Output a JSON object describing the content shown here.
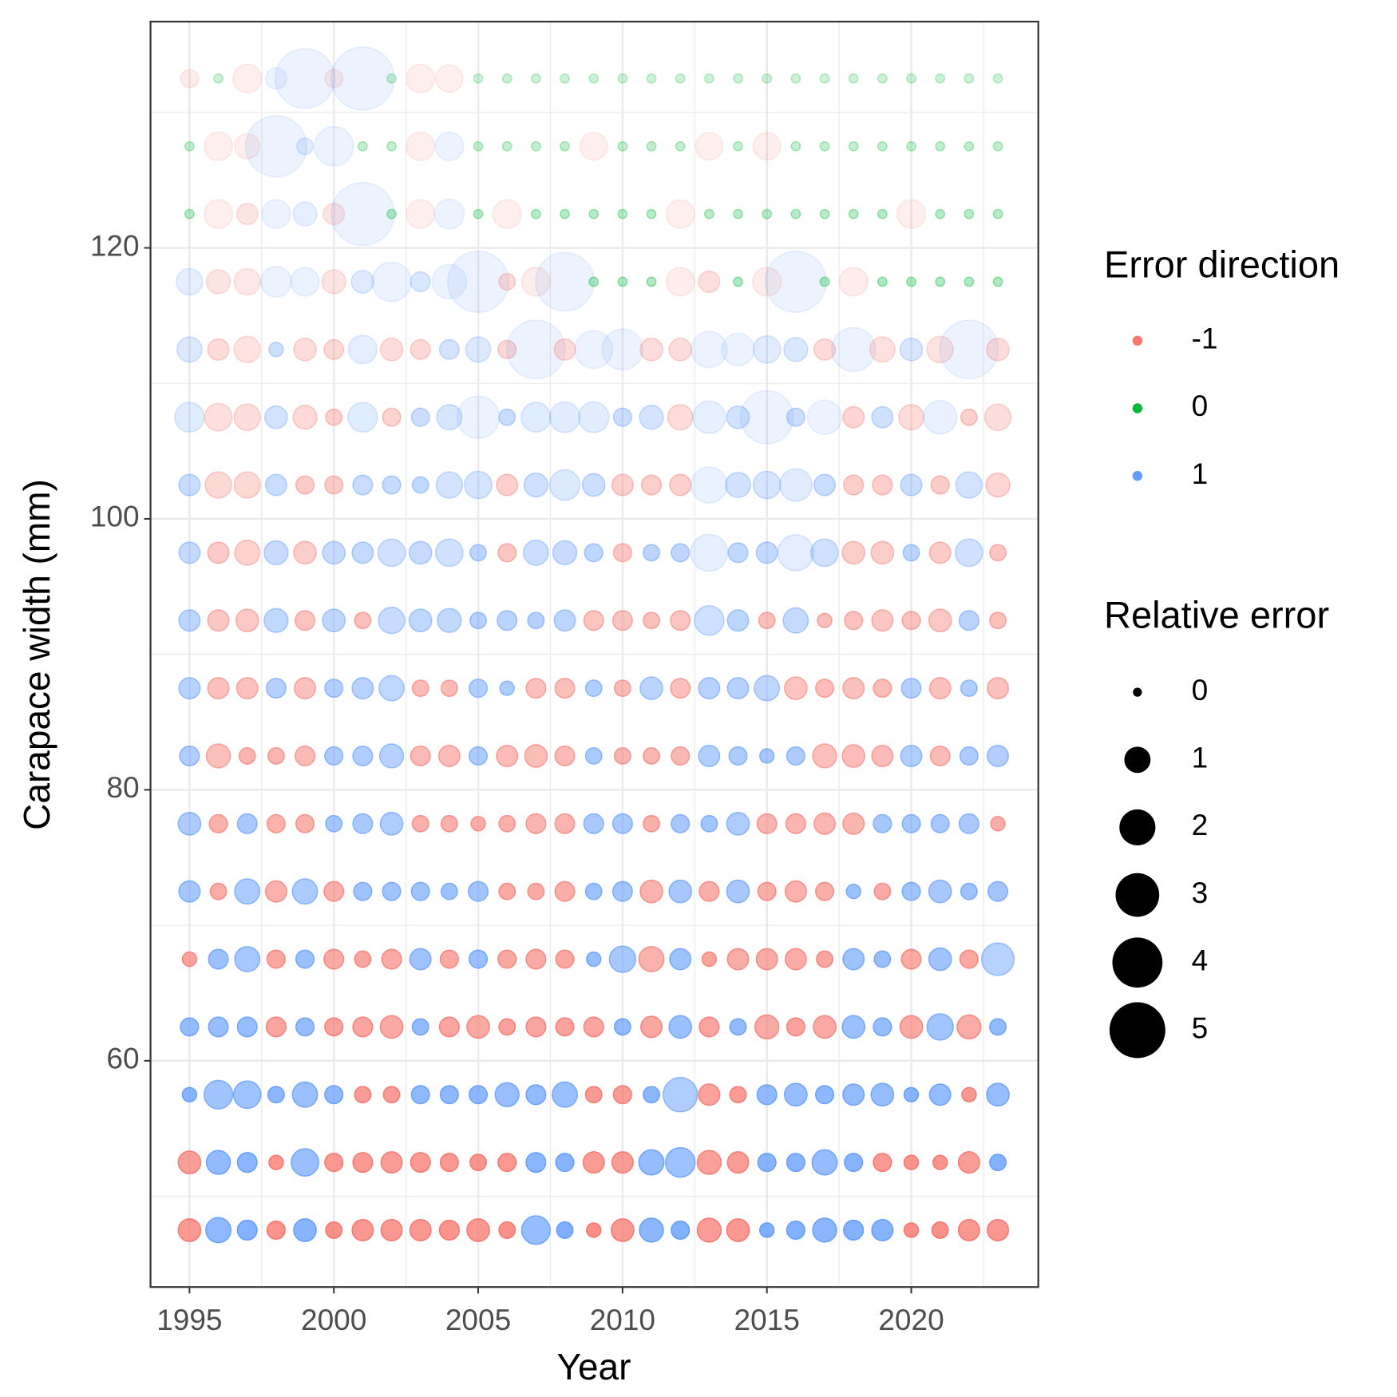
{
  "chart_data": {
    "type": "bubble",
    "x_label": "Year",
    "y_label": "Carapace width (mm)",
    "xlim": [
      1993.65,
      2024.4
    ],
    "ylim": [
      43.3,
      136.7
    ],
    "xticks": [
      1995,
      2000,
      2005,
      2010,
      2015,
      2020
    ],
    "yticks": [
      60,
      80,
      100,
      120
    ],
    "grid": true,
    "x": [
      1995,
      1996,
      1997,
      1998,
      1999,
      2000,
      2001,
      2002,
      2003,
      2004,
      2005,
      2006,
      2007,
      2008,
      2009,
      2010,
      2011,
      2012,
      2013,
      2014,
      2015,
      2016,
      2017,
      2018,
      2019,
      2020,
      2021,
      2022,
      2023
    ],
    "rows": [
      {
        "y": 132.5,
        "direction": [
          -1,
          0,
          -1,
          1,
          1,
          -1,
          1,
          0,
          -1,
          -1,
          0,
          0,
          0,
          0,
          0,
          0,
          0,
          0,
          0,
          0,
          0,
          0,
          0,
          0,
          0,
          0,
          0,
          0,
          0
        ],
        "size": [
          0.4,
          0,
          1.2,
          0.6,
          5.7,
          0.4,
          6.4,
          0,
          1.2,
          1.1,
          0,
          0,
          0,
          0,
          0,
          0,
          0,
          0,
          0,
          0,
          0,
          0,
          0,
          0,
          0,
          0,
          0,
          0,
          0
        ]
      },
      {
        "y": 127.5,
        "direction": [
          0,
          -1,
          -1,
          1,
          1,
          1,
          0,
          0,
          -1,
          1,
          0,
          0,
          0,
          0,
          -1,
          0,
          0,
          0,
          -1,
          0,
          -1,
          0,
          0,
          0,
          0,
          0,
          0,
          0,
          0
        ],
        "size": [
          0,
          1.2,
          0.9,
          6.0,
          0.3,
          2.4,
          0,
          0,
          1.2,
          1.2,
          0,
          0,
          0,
          0,
          1.1,
          0,
          0,
          0,
          1.1,
          0,
          1.1,
          0,
          0,
          0,
          0,
          0,
          0,
          0,
          0
        ]
      },
      {
        "y": 122.5,
        "direction": [
          0,
          -1,
          -1,
          1,
          1,
          -1,
          1,
          0,
          -1,
          1,
          0,
          -1,
          0,
          0,
          0,
          0,
          0,
          -1,
          0,
          0,
          0,
          0,
          0,
          0,
          0,
          -1,
          0,
          0,
          0
        ],
        "size": [
          0,
          1.2,
          0.6,
          1.2,
          0.8,
          0.6,
          6.4,
          0,
          1.2,
          1.3,
          0,
          1.2,
          0,
          0,
          0,
          0,
          0,
          1.2,
          0,
          0,
          0,
          0,
          0,
          0,
          0,
          1.2,
          0,
          0,
          0
        ]
      },
      {
        "y": 117.5,
        "direction": [
          1,
          -1,
          -1,
          1,
          1,
          -1,
          1,
          1,
          1,
          1,
          1,
          -1,
          -1,
          1,
          0,
          0,
          0,
          -1,
          -1,
          0,
          -1,
          1,
          0,
          -1,
          0,
          0,
          0,
          0,
          0
        ],
        "size": [
          1.0,
          0.8,
          1.0,
          1.4,
          1.2,
          0.8,
          0.7,
          2.4,
          0.5,
          1.8,
          6.0,
          0.3,
          1.2,
          5.5,
          0,
          0,
          0,
          1.2,
          0.6,
          0,
          1.2,
          6.0,
          0,
          1.2,
          0,
          0,
          0,
          0,
          0
        ]
      },
      {
        "y": 112.5,
        "direction": [
          1,
          -1,
          -1,
          1,
          -1,
          -1,
          1,
          -1,
          -1,
          1,
          1,
          -1,
          1,
          -1,
          1,
          1,
          -1,
          -1,
          1,
          1,
          1,
          1,
          -1,
          1,
          -1,
          1,
          -1,
          1,
          -1
        ],
        "size": [
          0.9,
          0.6,
          1.0,
          0.2,
          0.7,
          0.5,
          1.2,
          0.7,
          0.5,
          0.5,
          0.9,
          0.4,
          5.5,
          0.6,
          2.2,
          2.6,
          0.7,
          0.7,
          2.0,
          1.6,
          1.1,
          0.8,
          0.6,
          3.0,
          0.9,
          0.7,
          1.0,
          5.5,
          0.7
        ]
      },
      {
        "y": 107.5,
        "direction": [
          1,
          -1,
          -1,
          1,
          -1,
          -1,
          1,
          -1,
          1,
          1,
          1,
          1,
          1,
          1,
          1,
          1,
          1,
          -1,
          1,
          1,
          1,
          1,
          1,
          -1,
          1,
          -1,
          1,
          -1,
          -1
        ],
        "size": [
          1.3,
          1.1,
          1.0,
          0.7,
          0.8,
          0.3,
          1.3,
          0.4,
          0.4,
          0.9,
          2.8,
          0.3,
          1.3,
          1.4,
          1.4,
          0.4,
          0.8,
          0.9,
          1.6,
          0.7,
          4.5,
          0.4,
          1.8,
          0.6,
          0.6,
          0.9,
          1.7,
          0.3,
          1.0
        ]
      },
      {
        "y": 102.5,
        "direction": [
          1,
          -1,
          -1,
          1,
          -1,
          -1,
          1,
          1,
          1,
          1,
          1,
          -1,
          1,
          1,
          1,
          -1,
          -1,
          -1,
          1,
          1,
          1,
          1,
          1,
          -1,
          -1,
          1,
          -1,
          1,
          -1
        ],
        "size": [
          0.6,
          1.0,
          1.0,
          0.6,
          0.4,
          0.4,
          0.5,
          0.4,
          0.3,
          1.0,
          1.1,
          0.6,
          0.8,
          1.4,
          0.7,
          0.6,
          0.5,
          0.6,
          2.0,
          0.9,
          1.1,
          1.6,
          0.6,
          0.5,
          0.5,
          0.6,
          0.4,
          1.0,
          0.8
        ]
      },
      {
        "y": 97.5,
        "direction": [
          1,
          -1,
          -1,
          1,
          -1,
          1,
          1,
          1,
          1,
          1,
          1,
          -1,
          1,
          1,
          1,
          -1,
          1,
          1,
          1,
          1,
          1,
          1,
          1,
          -1,
          -1,
          1,
          -1,
          1,
          -1
        ],
        "size": [
          0.6,
          0.6,
          0.9,
          0.8,
          0.7,
          0.7,
          0.6,
          1.1,
          0.7,
          1.1,
          0.3,
          0.4,
          0.9,
          0.8,
          0.4,
          0.4,
          0.3,
          0.4,
          2.1,
          0.5,
          0.6,
          2.0,
          1.1,
          0.7,
          0.7,
          0.3,
          0.6,
          1.1,
          0.3
        ]
      },
      {
        "y": 92.5,
        "direction": [
          1,
          -1,
          -1,
          1,
          -1,
          1,
          -1,
          1,
          1,
          1,
          1,
          1,
          1,
          1,
          -1,
          -1,
          -1,
          -1,
          1,
          1,
          -1,
          1,
          -1,
          -1,
          -1,
          -1,
          -1,
          1,
          -1
        ],
        "size": [
          0.6,
          0.6,
          0.7,
          0.8,
          0.5,
          0.7,
          0.3,
          1.0,
          0.7,
          0.8,
          0.3,
          0.5,
          0.3,
          0.6,
          0.5,
          0.5,
          0.3,
          0.5,
          1.3,
          0.6,
          0.3,
          0.9,
          0.2,
          0.4,
          0.6,
          0.4,
          0.7,
          0.5,
          0.3
        ]
      },
      {
        "y": 87.5,
        "direction": [
          1,
          -1,
          -1,
          1,
          -1,
          1,
          1,
          1,
          -1,
          -1,
          1,
          1,
          -1,
          -1,
          1,
          -1,
          1,
          -1,
          1,
          1,
          1,
          -1,
          -1,
          -1,
          -1,
          1,
          -1,
          1,
          -1
        ],
        "size": [
          0.6,
          0.6,
          0.6,
          0.5,
          0.6,
          0.4,
          0.6,
          0.9,
          0.3,
          0.3,
          0.4,
          0.2,
          0.5,
          0.5,
          0.3,
          0.3,
          0.7,
          0.5,
          0.6,
          0.6,
          0.9,
          0.7,
          0.4,
          0.6,
          0.4,
          0.5,
          0.6,
          0.3,
          0.6
        ]
      },
      {
        "y": 82.5,
        "direction": [
          1,
          -1,
          -1,
          -1,
          -1,
          1,
          1,
          1,
          -1,
          -1,
          1,
          -1,
          -1,
          -1,
          1,
          -1,
          -1,
          -1,
          1,
          1,
          1,
          1,
          -1,
          -1,
          -1,
          1,
          -1,
          1,
          1
        ],
        "size": [
          0.5,
          0.8,
          0.3,
          0.3,
          0.5,
          0.4,
          0.5,
          0.8,
          0.5,
          0.6,
          0.4,
          0.6,
          0.7,
          0.5,
          0.3,
          0.3,
          0.3,
          0.4,
          0.6,
          0.4,
          0.2,
          0.4,
          0.8,
          0.7,
          0.6,
          0.6,
          0.5,
          0.4,
          0.6
        ]
      },
      {
        "y": 77.5,
        "direction": [
          1,
          -1,
          1,
          -1,
          -1,
          1,
          1,
          1,
          -1,
          -1,
          -1,
          -1,
          -1,
          -1,
          1,
          1,
          -1,
          1,
          1,
          1,
          -1,
          -1,
          -1,
          -1,
          1,
          1,
          1,
          1,
          -1
        ],
        "size": [
          0.7,
          0.4,
          0.5,
          0.4,
          0.4,
          0.3,
          0.5,
          0.7,
          0.3,
          0.3,
          0.2,
          0.3,
          0.5,
          0.5,
          0.5,
          0.5,
          0.3,
          0.4,
          0.3,
          0.7,
          0.5,
          0.5,
          0.6,
          0.6,
          0.4,
          0.4,
          0.4,
          0.5,
          0.2
        ]
      },
      {
        "y": 72.5,
        "direction": [
          1,
          -1,
          1,
          -1,
          1,
          -1,
          1,
          1,
          1,
          1,
          1,
          -1,
          -1,
          -1,
          1,
          1,
          -1,
          1,
          -1,
          1,
          -1,
          -1,
          -1,
          1,
          -1,
          1,
          1,
          1,
          1
        ],
        "size": [
          0.6,
          0.3,
          0.9,
          0.6,
          0.9,
          0.5,
          0.4,
          0.4,
          0.4,
          0.3,
          0.5,
          0.3,
          0.3,
          0.5,
          0.3,
          0.5,
          0.7,
          0.7,
          0.5,
          0.7,
          0.4,
          0.6,
          0.4,
          0.2,
          0.3,
          0.4,
          0.7,
          0.3,
          0.5
        ]
      },
      {
        "y": 67.5,
        "direction": [
          -1,
          1,
          1,
          -1,
          1,
          -1,
          -1,
          -1,
          1,
          -1,
          1,
          -1,
          -1,
          -1,
          1,
          1,
          -1,
          1,
          -1,
          -1,
          -1,
          -1,
          -1,
          1,
          1,
          -1,
          1,
          -1,
          1
        ],
        "size": [
          0.2,
          0.5,
          0.9,
          0.4,
          0.4,
          0.5,
          0.3,
          0.5,
          0.6,
          0.4,
          0.4,
          0.4,
          0.5,
          0.4,
          0.2,
          1.0,
          0.9,
          0.6,
          0.2,
          0.6,
          0.6,
          0.6,
          0.3,
          0.6,
          0.3,
          0.5,
          0.7,
          0.4,
          1.6
        ]
      },
      {
        "y": 62.5,
        "direction": [
          1,
          1,
          1,
          -1,
          1,
          -1,
          -1,
          -1,
          1,
          -1,
          -1,
          -1,
          -1,
          -1,
          -1,
          1,
          -1,
          1,
          -1,
          1,
          -1,
          -1,
          -1,
          1,
          1,
          -1,
          1,
          -1,
          1
        ],
        "size": [
          0.4,
          0.5,
          0.5,
          0.5,
          0.4,
          0.4,
          0.5,
          0.7,
          0.3,
          0.5,
          0.7,
          0.3,
          0.5,
          0.4,
          0.5,
          0.3,
          0.6,
          0.7,
          0.5,
          0.3,
          0.8,
          0.4,
          0.7,
          0.7,
          0.4,
          0.7,
          1.0,
          0.8,
          0.3
        ]
      },
      {
        "y": 57.5,
        "direction": [
          1,
          1,
          1,
          1,
          1,
          1,
          -1,
          -1,
          1,
          1,
          1,
          1,
          1,
          1,
          -1,
          -1,
          1,
          1,
          -1,
          -1,
          1,
          1,
          1,
          1,
          1,
          1,
          1,
          -1,
          1
        ],
        "size": [
          0.2,
          1.2,
          1.1,
          0.3,
          0.9,
          0.4,
          0.3,
          0.3,
          0.4,
          0.4,
          0.4,
          0.8,
          0.5,
          0.9,
          0.3,
          0.4,
          0.3,
          1.8,
          0.6,
          0.3,
          0.5,
          0.7,
          0.4,
          0.6,
          0.7,
          0.2,
          0.6,
          0.2,
          0.7
        ]
      },
      {
        "y": 52.5,
        "direction": [
          -1,
          1,
          1,
          -1,
          1,
          -1,
          -1,
          -1,
          -1,
          -1,
          -1,
          -1,
          1,
          1,
          -1,
          -1,
          1,
          1,
          -1,
          -1,
          1,
          1,
          1,
          1,
          -1,
          -1,
          -1,
          -1,
          1
        ],
        "size": [
          0.7,
          0.8,
          0.5,
          0.2,
          1.1,
          0.4,
          0.5,
          0.6,
          0.5,
          0.4,
          0.3,
          0.4,
          0.5,
          0.4,
          0.6,
          0.6,
          0.9,
          1.3,
          0.8,
          0.6,
          0.4,
          0.4,
          0.9,
          0.4,
          0.4,
          0.2,
          0.2,
          0.6,
          0.3
        ]
      },
      {
        "y": 47.5,
        "direction": [
          -1,
          1,
          1,
          -1,
          1,
          -1,
          -1,
          -1,
          -1,
          -1,
          -1,
          -1,
          1,
          1,
          -1,
          -1,
          1,
          1,
          -1,
          -1,
          1,
          1,
          1,
          1,
          1,
          -1,
          -1,
          -1,
          -1
        ],
        "size": [
          0.7,
          0.9,
          0.5,
          0.4,
          0.7,
          0.3,
          0.6,
          0.6,
          0.6,
          0.5,
          0.7,
          0.3,
          1.2,
          0.3,
          0.2,
          0.7,
          0.8,
          0.4,
          0.8,
          0.7,
          0.2,
          0.4,
          0.8,
          0.5,
          0.6,
          0.2,
          0.3,
          0.6,
          0.6
        ]
      }
    ],
    "color_legend": {
      "title": "Error direction",
      "items": [
        {
          "label": "-1",
          "value": -1,
          "color": "#F8766D"
        },
        {
          "label": "0",
          "value": 0,
          "color": "#00BA38"
        },
        {
          "label": "1",
          "value": 1,
          "color": "#619CFF"
        }
      ]
    },
    "size_legend": {
      "title": "Relative error",
      "values": [
        0,
        1,
        2,
        3,
        4,
        5
      ]
    }
  }
}
